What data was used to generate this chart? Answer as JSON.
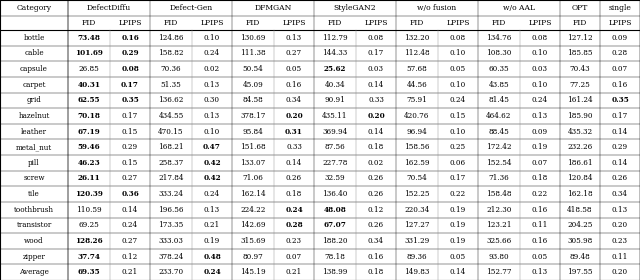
{
  "categories": [
    "bottle",
    "cable",
    "capsule",
    "carpet",
    "grid",
    "hazelnut",
    "leather",
    "metal_nut",
    "pill",
    "screw",
    "tile",
    "toothbrush",
    "transistor",
    "wood",
    "zipper",
    "Average"
  ],
  "data": {
    "bottle": {
      "DefectDiffu": [
        73.48,
        0.16
      ],
      "Defect-Gen": [
        124.86,
        0.1
      ],
      "DFMGAN": [
        130.69,
        0.13
      ],
      "StyleGAN2": [
        112.79,
        0.08
      ],
      "w/o fusion": [
        132.2,
        0.08
      ],
      "w/o AAL": [
        134.76,
        0.08
      ],
      "OPT_FID": 127.12,
      "single_LPIPS": 0.09
    },
    "cable": {
      "DefectDiffu": [
        101.69,
        0.29
      ],
      "Defect-Gen": [
        158.82,
        0.24
      ],
      "DFMGAN": [
        111.38,
        0.27
      ],
      "StyleGAN2": [
        144.33,
        0.17
      ],
      "w/o fusion": [
        112.48,
        0.1
      ],
      "w/o AAL": [
        108.3,
        0.1
      ],
      "OPT_FID": 185.85,
      "single_LPIPS": 0.28
    },
    "capsule": {
      "DefectDiffu": [
        26.85,
        0.08
      ],
      "Defect-Gen": [
        70.36,
        0.02
      ],
      "DFMGAN": [
        50.54,
        0.05
      ],
      "StyleGAN2": [
        25.62,
        0.03
      ],
      "w/o fusion": [
        57.68,
        0.05
      ],
      "w/o AAL": [
        60.35,
        0.03
      ],
      "OPT_FID": 70.43,
      "single_LPIPS": 0.07
    },
    "carpet": {
      "DefectDiffu": [
        40.31,
        0.17
      ],
      "Defect-Gen": [
        51.35,
        0.13
      ],
      "DFMGAN": [
        45.09,
        0.16
      ],
      "StyleGAN2": [
        40.34,
        0.14
      ],
      "w/o fusion": [
        44.56,
        0.1
      ],
      "w/o AAL": [
        43.85,
        0.1
      ],
      "OPT_FID": 77.25,
      "single_LPIPS": 0.16
    },
    "grid": {
      "DefectDiffu": [
        62.55,
        0.35
      ],
      "Defect-Gen": [
        136.62,
        0.3
      ],
      "DFMGAN": [
        84.58,
        0.34
      ],
      "StyleGAN2": [
        90.91,
        0.33
      ],
      "w/o fusion": [
        75.91,
        0.24
      ],
      "w/o AAL": [
        81.45,
        0.24
      ],
      "OPT_FID": 161.24,
      "single_LPIPS": 0.35
    },
    "hazelnut": {
      "DefectDiffu": [
        70.18,
        0.17
      ],
      "Defect-Gen": [
        434.55,
        0.13
      ],
      "DFMGAN": [
        378.17,
        0.2
      ],
      "StyleGAN2": [
        435.11,
        0.2
      ],
      "w/o fusion": [
        420.76,
        0.15
      ],
      "w/o AAL": [
        464.62,
        0.13
      ],
      "OPT_FID": 185.9,
      "single_LPIPS": 0.17
    },
    "leather": {
      "DefectDiffu": [
        67.19,
        0.15
      ],
      "Defect-Gen": [
        470.15,
        0.1
      ],
      "DFMGAN": [
        95.84,
        0.31
      ],
      "StyleGAN2": [
        369.94,
        0.14
      ],
      "w/o fusion": [
        96.94,
        0.1
      ],
      "w/o AAL": [
        88.45,
        0.09
      ],
      "OPT_FID": 435.32,
      "single_LPIPS": 0.14
    },
    "metal_nut": {
      "DefectDiffu": [
        59.46,
        0.29
      ],
      "Defect-Gen": [
        168.21,
        0.47
      ],
      "DFMGAN": [
        151.68,
        0.33
      ],
      "StyleGAN2": [
        87.56,
        0.18
      ],
      "w/o fusion": [
        158.56,
        0.25
      ],
      "w/o AAL": [
        172.42,
        0.19
      ],
      "OPT_FID": 232.26,
      "single_LPIPS": 0.29
    },
    "pill": {
      "DefectDiffu": [
        46.23,
        0.15
      ],
      "Defect-Gen": [
        258.37,
        0.42
      ],
      "DFMGAN": [
        133.07,
        0.14
      ],
      "StyleGAN2": [
        227.78,
        0.02
      ],
      "w/o fusion": [
        162.59,
        0.06
      ],
      "w/o AAL": [
        152.54,
        0.07
      ],
      "OPT_FID": 186.61,
      "single_LPIPS": 0.14
    },
    "screw": {
      "DefectDiffu": [
        26.11,
        0.27
      ],
      "Defect-Gen": [
        217.84,
        0.42
      ],
      "DFMGAN": [
        71.06,
        0.26
      ],
      "StyleGAN2": [
        32.59,
        0.26
      ],
      "w/o fusion": [
        70.54,
        0.17
      ],
      "w/o AAL": [
        71.36,
        0.18
      ],
      "OPT_FID": 120.84,
      "single_LPIPS": 0.26
    },
    "tile": {
      "DefectDiffu": [
        120.39,
        0.36
      ],
      "Defect-Gen": [
        333.24,
        0.24
      ],
      "DFMGAN": [
        162.14,
        0.18
      ],
      "StyleGAN2": [
        136.4,
        0.26
      ],
      "w/o fusion": [
        152.25,
        0.22
      ],
      "w/o AAL": [
        158.48,
        0.22
      ],
      "OPT_FID": 162.18,
      "single_LPIPS": 0.34
    },
    "toothbrush": {
      "DefectDiffu": [
        110.59,
        0.14
      ],
      "Defect-Gen": [
        196.56,
        0.13
      ],
      "DFMGAN": [
        224.22,
        0.24
      ],
      "StyleGAN2": [
        48.08,
        0.12
      ],
      "w/o fusion": [
        220.34,
        0.19
      ],
      "w/o AAL": [
        212.3,
        0.16
      ],
      "OPT_FID": 418.58,
      "single_LPIPS": 0.13
    },
    "transistor": {
      "DefectDiffu": [
        69.25,
        0.24
      ],
      "Defect-Gen": [
        173.35,
        0.21
      ],
      "DFMGAN": [
        142.69,
        0.28
      ],
      "StyleGAN2": [
        67.07,
        0.26
      ],
      "w/o fusion": [
        127.27,
        0.19
      ],
      "w/o AAL": [
        123.21,
        0.11
      ],
      "OPT_FID": 204.25,
      "single_LPIPS": 0.2
    },
    "wood": {
      "DefectDiffu": [
        128.26,
        0.27
      ],
      "Defect-Gen": [
        333.03,
        0.19
      ],
      "DFMGAN": [
        315.69,
        0.23
      ],
      "StyleGAN2": [
        188.2,
        0.34
      ],
      "w/o fusion": [
        331.29,
        0.19
      ],
      "w/o AAL": [
        325.66,
        0.16
      ],
      "OPT_FID": 305.98,
      "single_LPIPS": 0.23
    },
    "zipper": {
      "DefectDiffu": [
        37.74,
        0.12
      ],
      "Defect-Gen": [
        378.24,
        0.48
      ],
      "DFMGAN": [
        80.97,
        0.07
      ],
      "StyleGAN2": [
        78.18,
        0.16
      ],
      "w/o fusion": [
        89.36,
        0.05
      ],
      "w/o AAL": [
        93.8,
        0.05
      ],
      "OPT_FID": 89.48,
      "single_LPIPS": 0.11
    },
    "Average": {
      "DefectDiffu": [
        69.35,
        0.21
      ],
      "Defect-Gen": [
        233.7,
        0.24
      ],
      "DFMGAN": [
        145.19,
        0.21
      ],
      "StyleGAN2": [
        138.99,
        0.18
      ],
      "w/o fusion": [
        149.83,
        0.14
      ],
      "w/o AAL": [
        152.77,
        0.13
      ],
      "OPT_FID": 197.55,
      "single_LPIPS": 0.2
    }
  },
  "bold": {
    "bottle": {
      "DefectDiffu_FID": true,
      "DefectDiffu_LPIPS": true
    },
    "cable": {
      "DefectDiffu_FID": true,
      "DefectDiffu_LPIPS": true
    },
    "capsule": {
      "DefectDiffu_LPIPS": true,
      "StyleGAN2_FID": true
    },
    "carpet": {
      "DefectDiffu_FID": true,
      "DefectDiffu_LPIPS": true
    },
    "grid": {
      "DefectDiffu_FID": true,
      "DefectDiffu_LPIPS": true,
      "single_LPIPS": true
    },
    "hazelnut": {
      "DefectDiffu_FID": true,
      "DFMGAN_LPIPS": true,
      "StyleGAN2_LPIPS": true
    },
    "leather": {
      "DefectDiffu_FID": true,
      "DFMGAN_LPIPS": true
    },
    "metal_nut": {
      "DefectDiffu_FID": true,
      "Defect-Gen_LPIPS": true
    },
    "pill": {
      "DefectDiffu_FID": true,
      "Defect-Gen_LPIPS": true
    },
    "screw": {
      "DefectDiffu_FID": true,
      "Defect-Gen_LPIPS": true
    },
    "tile": {
      "DefectDiffu_FID": true,
      "DefectDiffu_LPIPS": true
    },
    "toothbrush": {
      "StyleGAN2_FID": true,
      "DFMGAN_LPIPS": true
    },
    "transistor": {
      "StyleGAN2_FID": true,
      "DFMGAN_LPIPS": true
    },
    "wood": {
      "DefectDiffu_FID": true
    },
    "zipper": {
      "DefectDiffu_FID": true,
      "Defect-Gen_LPIPS": true
    },
    "Average": {
      "DefectDiffu_FID": true,
      "Defect-Gen_LPIPS": true
    }
  },
  "group_names": [
    "DefectDiffu",
    "Defect-Gen",
    "DFMGAN",
    "StyleGAN2",
    "w/o fusion",
    "w/o AAL",
    "OPT",
    "single"
  ],
  "method_keys": [
    "DefectDiffu",
    "Defect-Gen",
    "DFMGAN",
    "StyleGAN2",
    "w/o fusion",
    "w/o AAL"
  ],
  "figsize": [
    6.4,
    2.8
  ],
  "dpi": 100
}
